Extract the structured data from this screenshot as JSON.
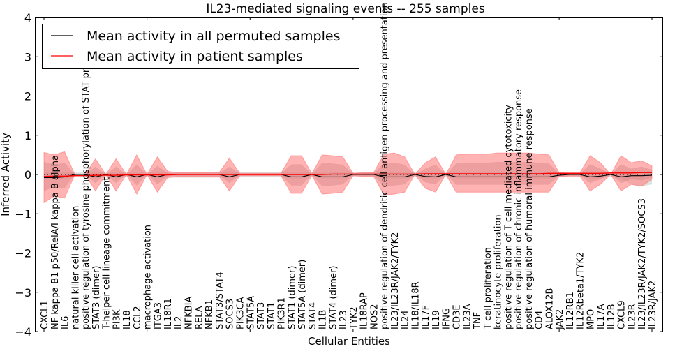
{
  "chart_data": {
    "type": "line",
    "title": "IL23-mediated signaling events -- 255 samples",
    "xlabel": "Cellular Entities",
    "ylabel": "Inferred Activity",
    "ylim": [
      -4,
      4
    ],
    "yticks": [
      -4,
      -3,
      -2,
      -1,
      0,
      1,
      2,
      3,
      4
    ],
    "ytick_labels": [
      "−4",
      "−3",
      "−2",
      "−1",
      "0",
      "1",
      "2",
      "3",
      "4"
    ],
    "grid": false,
    "legend_position": "top-left",
    "legend": [
      {
        "label": "Mean activity in all permuted samples",
        "color": "#000000"
      },
      {
        "label": "Mean activity in patient samples",
        "color": "#ff0000"
      }
    ],
    "categories": [
      "CXCL1",
      "NF kappa B1 p50/RelA/I kappa B alpha",
      "IL6",
      "natural killer cell activation",
      "positive regulation of tyrosine phosphorylation of STAT protein",
      "STAT3 (dimer)",
      "T-helper cell lineage commitment",
      "PI3K",
      "IL18",
      "CCL2",
      "macrophage activation",
      "ITGA3",
      "IL18R1",
      "IL2",
      "NFKBIA",
      "RELA",
      "NFKB1",
      "STAT3/STAT4",
      "SOCS3",
      "PIK3CA",
      "STAT5A",
      "STAT3",
      "STAT1",
      "PIK3R1",
      "STAT1 (dimer)",
      "STAT5A (dimer)",
      "STAT4",
      "IL1B",
      "STAT4 (dimer)",
      "IL23",
      "TYK2",
      "IL18RAP",
      "NOS2",
      "positive regulation of dendritic cell antigen processing and presentation",
      "IL23/IL23R/JAK2/TYK2",
      "IL24",
      "IL18/IL18R",
      "IL17F",
      "IL19",
      "IFNG",
      "CD3E",
      "IL23A",
      "TNF",
      "T cell proliferation",
      "keratinocyte proliferation",
      "positive regulation of T cell mediated cytotoxicity",
      "positive regulation of chronic inflammatory response",
      "positive regulation of humoral immune response",
      "CD4",
      "ALOX12B",
      "JAK2",
      "IL12RB1",
      "IL12Rbeta1/TYK2",
      "MPO",
      "IL17A",
      "IL12B",
      "CXCL9",
      "IL23R",
      "IL23/IL23R/JAK2/TYK2/SOCS3",
      "IL23R/JAK2"
    ],
    "series": [
      {
        "name": "Mean activity in all permuted samples",
        "color": "#000000",
        "values": [
          -0.08,
          -0.08,
          -0.06,
          0.0,
          0.0,
          -0.06,
          0.0,
          -0.06,
          0.0,
          -0.06,
          0.0,
          -0.06,
          0.0,
          0.0,
          0.0,
          0.0,
          0.0,
          0.0,
          -0.06,
          0.0,
          0.0,
          0.0,
          0.0,
          0.0,
          -0.06,
          -0.06,
          0.0,
          -0.06,
          -0.06,
          -0.06,
          0.0,
          0.0,
          0.0,
          -0.06,
          -0.06,
          -0.06,
          0.0,
          -0.05,
          -0.06,
          0.0,
          -0.06,
          -0.06,
          -0.06,
          -0.06,
          -0.06,
          -0.06,
          -0.06,
          -0.06,
          -0.06,
          -0.06,
          -0.02,
          0.0,
          0.0,
          -0.06,
          -0.04,
          0.0,
          -0.06,
          -0.03,
          -0.03,
          -0.02
        ]
      },
      {
        "name": "Mean activity in patient samples",
        "color": "#ff0000",
        "values": [
          -0.05,
          -0.04,
          -0.04,
          -0.03,
          -0.03,
          -0.02,
          -0.02,
          -0.02,
          -0.01,
          -0.01,
          -0.01,
          -0.01,
          -0.01,
          0.0,
          0.0,
          0.0,
          0.0,
          0.0,
          0.0,
          0.0,
          0.0,
          0.0,
          0.0,
          0.0,
          0.0,
          0.0,
          0.0,
          0.0,
          0.01,
          0.01,
          0.01,
          0.01,
          0.01,
          0.01,
          0.01,
          0.01,
          0.01,
          0.02,
          0.02,
          0.02,
          0.02,
          0.02,
          0.02,
          0.02,
          0.02,
          0.02,
          0.02,
          0.02,
          0.02,
          0.03,
          0.03,
          0.03,
          0.03,
          0.03,
          0.03,
          0.04,
          0.04,
          0.04,
          0.05,
          0.05
        ]
      }
    ],
    "patient_band_outer": {
      "upper": [
        0.56,
        0.5,
        0.58,
        0.0,
        0.0,
        0.4,
        0.0,
        0.4,
        0.0,
        0.5,
        0.0,
        0.45,
        0.08,
        0.05,
        0.05,
        0.05,
        0.05,
        0.05,
        0.42,
        0.03,
        0.03,
        0.03,
        0.03,
        0.03,
        0.48,
        0.48,
        0.02,
        0.5,
        0.48,
        0.45,
        0.03,
        0.05,
        0.05,
        0.52,
        0.55,
        0.45,
        0.0,
        0.3,
        0.45,
        0.0,
        0.5,
        0.52,
        0.52,
        0.52,
        0.55,
        0.55,
        0.55,
        0.55,
        0.52,
        0.5,
        0.05,
        0.04,
        0.04,
        0.48,
        0.3,
        0.0,
        0.48,
        0.3,
        0.35,
        0.22
      ],
      "lower": [
        -0.72,
        -0.55,
        -0.6,
        0.0,
        0.0,
        -0.42,
        0.0,
        -0.42,
        0.0,
        -0.5,
        0.0,
        -0.45,
        -0.08,
        -0.05,
        -0.05,
        -0.05,
        -0.05,
        -0.05,
        -0.42,
        -0.03,
        -0.03,
        -0.03,
        -0.03,
        -0.03,
        -0.48,
        -0.48,
        -0.02,
        -0.5,
        -0.48,
        -0.45,
        -0.03,
        -0.05,
        -0.05,
        -0.52,
        -0.5,
        -0.45,
        0.0,
        -0.35,
        -0.45,
        0.0,
        -0.45,
        -0.45,
        -0.45,
        -0.45,
        -0.45,
        -0.45,
        -0.45,
        -0.45,
        -0.45,
        -0.45,
        -0.05,
        -0.04,
        -0.04,
        -0.42,
        -0.25,
        0.0,
        -0.42,
        -0.25,
        -0.3,
        -0.12
      ]
    },
    "patient_band_inner": {
      "upper": [
        0.32,
        0.25,
        0.3,
        0.0,
        0.0,
        0.2,
        0.0,
        0.2,
        0.0,
        0.26,
        0.0,
        0.22,
        0.04,
        0.03,
        0.03,
        0.03,
        0.03,
        0.03,
        0.2,
        0.02,
        0.02,
        0.02,
        0.02,
        0.02,
        0.26,
        0.26,
        0.01,
        0.3,
        0.28,
        0.25,
        0.02,
        0.03,
        0.03,
        0.3,
        0.3,
        0.25,
        0.0,
        0.15,
        0.25,
        0.0,
        0.28,
        0.3,
        0.3,
        0.3,
        0.32,
        0.32,
        0.32,
        0.32,
        0.3,
        0.28,
        0.03,
        0.02,
        0.02,
        0.26,
        0.15,
        0.0,
        0.26,
        0.15,
        0.2,
        0.12
      ],
      "lower": [
        -0.42,
        -0.32,
        -0.35,
        0.0,
        0.0,
        -0.22,
        0.0,
        -0.22,
        0.0,
        -0.28,
        0.0,
        -0.25,
        -0.04,
        -0.03,
        -0.03,
        -0.03,
        -0.03,
        -0.03,
        -0.22,
        -0.02,
        -0.02,
        -0.02,
        -0.02,
        -0.02,
        -0.28,
        -0.28,
        -0.01,
        -0.3,
        -0.28,
        -0.25,
        -0.02,
        -0.03,
        -0.03,
        -0.3,
        -0.28,
        -0.25,
        0.0,
        -0.2,
        -0.25,
        0.0,
        -0.26,
        -0.26,
        -0.26,
        -0.26,
        -0.26,
        -0.26,
        -0.26,
        -0.26,
        -0.26,
        -0.26,
        -0.03,
        -0.02,
        -0.02,
        -0.22,
        -0.12,
        0.0,
        -0.22,
        -0.12,
        -0.15,
        -0.08
      ]
    },
    "permuted_band": {
      "upper": [
        0.05,
        0.05,
        0.05,
        0.05,
        0.05,
        0.05,
        0.05,
        0.05,
        0.05,
        0.05,
        0.05,
        0.05,
        0.06,
        0.06,
        0.06,
        0.06,
        0.06,
        0.06,
        0.06,
        0.06,
        0.06,
        0.06,
        0.06,
        0.06,
        0.05,
        0.05,
        0.05,
        0.05,
        0.05,
        0.05,
        0.05,
        0.05,
        0.05,
        0.05,
        0.05,
        0.05,
        0.05,
        0.05,
        0.05,
        0.05,
        0.05,
        0.05,
        0.05,
        0.05,
        0.05,
        0.05,
        0.05,
        0.05,
        0.05,
        0.05,
        0.05,
        0.05,
        0.05,
        0.05,
        0.05,
        0.05,
        0.05,
        0.05,
        0.05,
        0.05
      ],
      "lower": [
        -0.12,
        -0.12,
        -0.12,
        -0.05,
        -0.05,
        -0.1,
        -0.05,
        -0.1,
        -0.05,
        -0.1,
        -0.05,
        -0.1,
        -0.08,
        -0.08,
        -0.08,
        -0.08,
        -0.08,
        -0.08,
        -0.1,
        -0.06,
        -0.06,
        -0.06,
        -0.06,
        -0.06,
        -0.1,
        -0.1,
        -0.05,
        -0.1,
        -0.1,
        -0.1,
        -0.05,
        -0.05,
        -0.05,
        -0.1,
        -0.1,
        -0.1,
        -0.05,
        -0.1,
        -0.1,
        -0.05,
        -0.1,
        -0.1,
        -0.1,
        -0.1,
        -0.1,
        -0.1,
        -0.1,
        -0.1,
        -0.1,
        -0.1,
        -0.06,
        -0.05,
        -0.05,
        -0.1,
        -0.1,
        -0.05,
        -0.12,
        -0.25,
        -0.3,
        -0.25
      ]
    },
    "colors": {
      "patient_line": "#ff0000",
      "permuted_line": "#000000",
      "patient_band": "#ff8080",
      "permuted_band": "#cccccc",
      "zero_line": "#000000"
    }
  }
}
